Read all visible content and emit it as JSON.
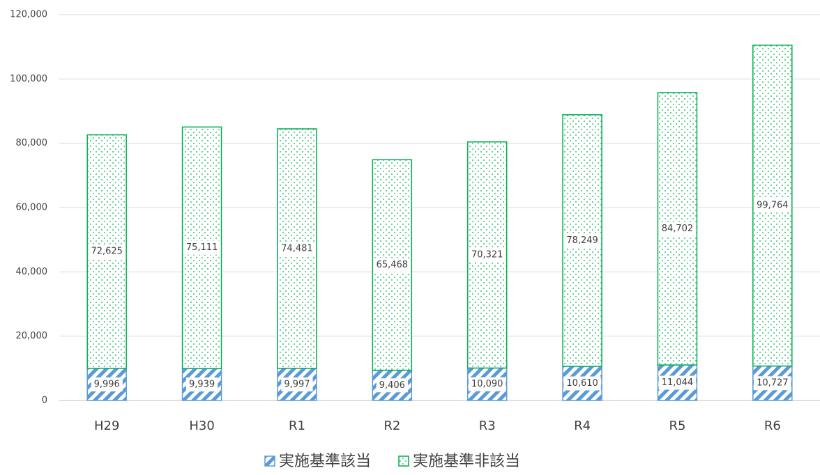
{
  "chart_data": {
    "type": "bar",
    "stacked": true,
    "categories": [
      "H29",
      "H30",
      "R1",
      "R2",
      "R3",
      "R4",
      "R5",
      "R6"
    ],
    "series": [
      {
        "name": "実施基準該当",
        "color": "#5b9bd5",
        "pattern": "hatch",
        "values": [
          9996,
          9939,
          9997,
          9406,
          10090,
          10610,
          11044,
          10727
        ],
        "value_labels": [
          "9,996",
          "9,939",
          "9,997",
          "9,406",
          "10,090",
          "10,610",
          "11,044",
          "10,727"
        ]
      },
      {
        "name": "実施基準非該当",
        "color": "#00b050",
        "pattern": "dots",
        "values": [
          72625,
          75111,
          74481,
          65468,
          70321,
          78249,
          84702,
          99764
        ],
        "value_labels": [
          "72,625",
          "75,111",
          "74,481",
          "65,468",
          "70,321",
          "78,249",
          "84,702",
          "99,764"
        ]
      }
    ],
    "ylim": [
      0,
      120000
    ],
    "yticks": [
      0,
      {
        "value": 20000,
        "label": "20,000"
      },
      {
        "value": 40000,
        "label": "40,000"
      },
      {
        "value": 60000,
        "label": "60,000"
      },
      {
        "value": 80000,
        "label": "80,000"
      },
      {
        "value": 100000,
        "label": "100,000"
      },
      {
        "value": 120000,
        "label": "120,000"
      }
    ],
    "grid": true,
    "legend": "bottom"
  }
}
